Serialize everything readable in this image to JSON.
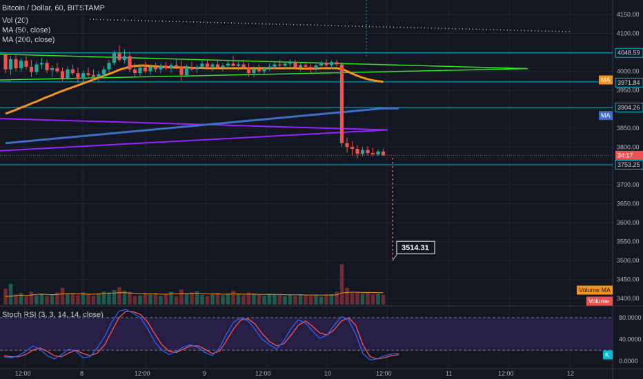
{
  "header": {
    "title": "Bitcoin / Dollar, 60, BITSTAMP",
    "indicators": [
      "Vol (20)",
      "MA (50, close)",
      "MA (200, close)"
    ]
  },
  "rsi_panel": {
    "title": "Stoch RSI (3, 3, 14, 14, close)"
  },
  "colors": {
    "background": "#131722",
    "up": "#26a69a",
    "down": "#ef5350",
    "ma50": "#f7931a",
    "ma200": "#3d6fc4",
    "channel": "#31e621",
    "wedge": "#9c1fff",
    "level": "#00bcd4",
    "stoch_k": "#2962ff",
    "stoch_d": "#ff5252"
  },
  "chart_data": [
    {
      "type": "candlestick",
      "y_axis_ticks": [
        3400,
        3450,
        3500,
        3550,
        3600,
        3650,
        3700,
        3750,
        3800,
        3850,
        3900,
        3950,
        4000,
        4050,
        4100,
        4150
      ],
      "y_tick_labels": [
        "3400.00",
        "3450.00",
        "3500.00",
        "3550.00",
        "3600.00",
        "3650.00",
        "3700.00",
        "3750.00",
        "3800.00",
        "3850.00",
        "3900.00",
        "3950.00",
        "4000.00",
        "4050.00",
        "4100.00",
        "4150.00"
      ],
      "ylim": [
        3375,
        4185
      ],
      "x_axis_labels": [
        "12:00",
        "8",
        "12:00",
        "9",
        "12:00",
        "10",
        "12:00",
        "11",
        "12:00",
        "12"
      ],
      "horizontal_levels": [
        4048.59,
        3971.84,
        3904.26,
        3753.25
      ],
      "price_labels": {
        "level_1": "4048.59",
        "ma50": "MA",
        "level_2": "3971.84",
        "level_3": "3904.26",
        "ma200": "MA",
        "countdown": "34:17",
        "level_4": "3753.25",
        "volume_ma": "Volume MA",
        "volume": "Volume"
      },
      "current_price": 3778,
      "target_annotation": {
        "label": "3514.31",
        "value": 3514.31
      },
      "candles": [
        [
          4045,
          4048,
          3995,
          4005
        ],
        [
          4005,
          4040,
          3990,
          4032
        ],
        [
          4032,
          4045,
          4000,
          4008
        ],
        [
          4008,
          4035,
          3998,
          4028
        ],
        [
          4028,
          4040,
          4005,
          4012
        ],
        [
          4012,
          4030,
          3985,
          3998
        ],
        [
          3998,
          4025,
          3990,
          4018
        ],
        [
          4018,
          4035,
          4005,
          4022
        ],
        [
          4022,
          4030,
          3995,
          4003
        ],
        [
          4003,
          4015,
          3985,
          4008
        ],
        [
          4008,
          4022,
          3995,
          4000
        ],
        [
          4000,
          4010,
          3975,
          3982
        ],
        [
          3982,
          4012,
          3978,
          4005
        ],
        [
          4005,
          4018,
          3990,
          3995
        ],
        [
          3995,
          4010,
          3970,
          3980
        ],
        [
          3980,
          4002,
          3972,
          3995
        ],
        [
          3995,
          4010,
          3985,
          3990
        ],
        [
          3990,
          4005,
          3975,
          3985
        ],
        [
          3985,
          4000,
          3970,
          3992
        ],
        [
          3992,
          4012,
          3985,
          4005
        ],
        [
          4005,
          4030,
          3998,
          4022
        ],
        [
          4022,
          4055,
          4015,
          4048
        ],
        [
          4048,
          4068,
          4025,
          4030
        ],
        [
          4030,
          4058,
          4020,
          4040
        ],
        [
          4040,
          4052,
          3998,
          4005
        ],
        [
          4005,
          4022,
          3985,
          3995
        ],
        [
          3995,
          4018,
          3988,
          4010
        ],
        [
          4010,
          4025,
          3995,
          4000
        ],
        [
          4000,
          4018,
          3990,
          4012
        ],
        [
          4012,
          4022,
          3998,
          4005
        ],
        [
          4005,
          4020,
          3995,
          4015
        ],
        [
          4015,
          4025,
          4002,
          4008
        ],
        [
          4008,
          4022,
          3995,
          4016
        ],
        [
          4016,
          4030,
          4005,
          4012
        ],
        [
          4012,
          4028,
          3975,
          3990
        ],
        [
          3990,
          4018,
          3985,
          4010
        ],
        [
          4010,
          4025,
          4000,
          4005
        ],
        [
          4005,
          4018,
          3995,
          4012
        ],
        [
          4012,
          4028,
          4005,
          4020
        ],
        [
          4020,
          4030,
          4008,
          4012
        ],
        [
          4012,
          4022,
          4000,
          4018
        ],
        [
          4018,
          4030,
          4005,
          4010
        ],
        [
          4010,
          4022,
          4000,
          4015
        ],
        [
          4015,
          4028,
          4008,
          4020
        ],
        [
          4020,
          4040,
          4012,
          4014
        ],
        [
          4014,
          4025,
          4002,
          4018
        ],
        [
          4018,
          4030,
          4005,
          4010
        ],
        [
          4010,
          4022,
          3985,
          3995
        ],
        [
          3995,
          4012,
          3985,
          4005
        ],
        [
          4005,
          4018,
          3995,
          4000
        ],
        [
          4000,
          4012,
          3990,
          4008
        ],
        [
          4008,
          4020,
          4000,
          4012
        ],
        [
          4012,
          4025,
          4005,
          4018
        ],
        [
          4018,
          4030,
          4010,
          4015
        ],
        [
          4015,
          4025,
          4005,
          4020
        ],
        [
          4020,
          4032,
          4010,
          4024
        ],
        [
          4024,
          4030,
          4005,
          4010
        ],
        [
          4010,
          4020,
          4000,
          4016
        ],
        [
          4016,
          4025,
          4008,
          4012
        ],
        [
          4012,
          4020,
          3996,
          4008
        ],
        [
          4008,
          4020,
          4000,
          4015
        ],
        [
          4015,
          4028,
          4008,
          4022
        ],
        [
          4022,
          4032,
          4010,
          4016
        ],
        [
          4016,
          4028,
          4005,
          4024
        ],
        [
          4024,
          4030,
          4012,
          4018
        ],
        [
          4018,
          4024,
          3800,
          3810
        ],
        [
          3810,
          3825,
          3785,
          3800
        ],
        [
          3800,
          3815,
          3778,
          3795
        ],
        [
          3795,
          3805,
          3770,
          3782
        ],
        [
          3782,
          3800,
          3775,
          3792
        ],
        [
          3792,
          3802,
          3778,
          3784
        ],
        [
          3784,
          3798,
          3774,
          3780
        ],
        [
          3780,
          3794,
          3776,
          3788
        ],
        [
          3788,
          3796,
          3776,
          3778
        ]
      ],
      "volumes": [
        55,
        72,
        35,
        40,
        28,
        45,
        32,
        38,
        30,
        35,
        42,
        58,
        38,
        40,
        32,
        42,
        35,
        30,
        38,
        45,
        42,
        50,
        60,
        48,
        44,
        30,
        32,
        38,
        35,
        40,
        30,
        36,
        44,
        28,
        52,
        38,
        42,
        46,
        34,
        30,
        36,
        40,
        33,
        38,
        48,
        36,
        32,
        42,
        38,
        34,
        30,
        38,
        36,
        34,
        30,
        33,
        30,
        36,
        32,
        30,
        34,
        28,
        32,
        36,
        45,
        140,
        58,
        40,
        42,
        38,
        40,
        36,
        38,
        34
      ],
      "volume_ma": [
        28,
        29,
        31,
        32,
        31,
        33,
        35,
        36,
        35,
        34,
        35,
        37,
        38,
        38,
        37,
        37,
        36,
        36,
        37,
        38,
        39,
        40,
        41,
        41,
        40,
        39,
        38,
        38,
        37,
        37,
        36,
        36,
        37,
        37,
        38,
        38,
        38,
        39,
        38,
        37,
        37,
        37,
        36,
        36,
        37,
        37,
        36,
        36,
        36,
        35,
        35,
        35,
        35,
        35,
        34,
        34,
        34,
        34,
        33,
        33,
        33,
        33,
        33,
        33,
        34,
        40,
        42,
        43,
        43,
        42,
        42,
        42,
        41,
        41
      ]
    },
    {
      "type": "line",
      "name": "Stoch RSI (3, 3, 14, 14, close)",
      "y_axis_ticks": [
        0,
        40,
        80
      ],
      "y_tick_labels": [
        "0.0000",
        "40.0000",
        "80.0000"
      ],
      "ylim": [
        -8,
        100
      ],
      "bands": [
        20,
        80
      ],
      "k_label": "K",
      "k": [
        8,
        6,
        10,
        18,
        28,
        22,
        10,
        4,
        12,
        22,
        18,
        6,
        8,
        25,
        45,
        72,
        92,
        95,
        88,
        80,
        60,
        35,
        20,
        12,
        18,
        26,
        30,
        25,
        16,
        10,
        24,
        50,
        72,
        80,
        74,
        58,
        40,
        30,
        22,
        38,
        60,
        76,
        70,
        55,
        42,
        48,
        66,
        82,
        76,
        50,
        14,
        2,
        4,
        10,
        13,
        14
      ],
      "d": [
        10,
        8,
        8,
        12,
        20,
        24,
        18,
        10,
        8,
        15,
        20,
        14,
        10,
        15,
        30,
        55,
        80,
        92,
        91,
        86,
        72,
        50,
        30,
        18,
        16,
        22,
        28,
        28,
        22,
        14,
        18,
        38,
        60,
        76,
        78,
        68,
        50,
        36,
        28,
        32,
        48,
        66,
        74,
        64,
        52,
        48,
        58,
        74,
        80,
        66,
        30,
        8,
        4,
        6,
        10,
        12
      ]
    }
  ]
}
